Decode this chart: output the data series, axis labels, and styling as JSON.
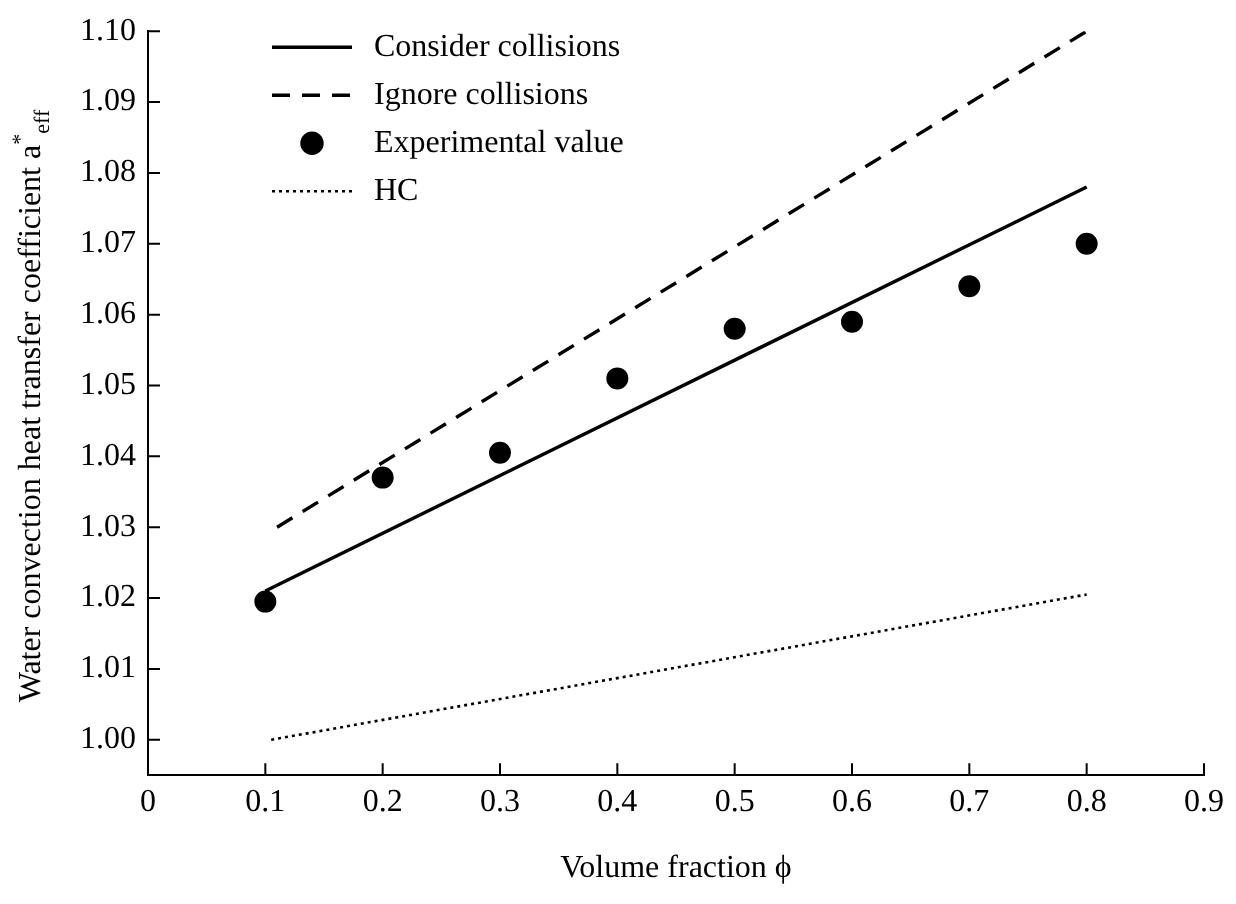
{
  "chart_data": {
    "type": "line",
    "xlabel": "Volume fraction ϕ",
    "ylabel": "Water convection heat transfer coefficient a$^{*}$$_{eff}$",
    "xlim": [
      0,
      0.9
    ],
    "xticks": [
      0,
      0.1,
      0.2,
      0.3,
      0.4,
      0.5,
      0.6,
      0.7,
      0.8,
      0.9
    ],
    "ylim": [
      0.995,
      1.1
    ],
    "yticks": [
      {
        "value": 1,
        "label": "1.00"
      },
      {
        "value": 1.01,
        "label": "1.01"
      },
      {
        "value": 1.02,
        "label": "1.02"
      },
      {
        "value": 1.03,
        "label": "1.03"
      },
      {
        "value": 1.04,
        "label": "1.04"
      },
      {
        "value": 1.05,
        "label": "1.05"
      },
      {
        "value": 1.06,
        "label": "1.06"
      },
      {
        "value": 1.07,
        "label": "1.07"
      },
      {
        "value": 1.08,
        "label": "1.08"
      },
      {
        "value": 1.09,
        "label": "1.09"
      },
      {
        "value": 1.1,
        "label": "1.10"
      }
    ],
    "legend": "top left",
    "series": [
      {
        "name": "Consider collisions",
        "line_style": "solid",
        "color": "#000000",
        "x": [
          0.1,
          0.8
        ],
        "values": [
          1.021,
          1.078
        ]
      },
      {
        "name": "Ignore collisions",
        "line_style": "dashed",
        "color": "#000000",
        "x": [
          0.11,
          0.8
        ],
        "values": [
          1.03,
          1.1
        ]
      },
      {
        "name": "Experimental value",
        "type": "scatter",
        "marker": "circle",
        "color": "#000000",
        "x": [
          0.1,
          0.2,
          0.3,
          0.4,
          0.5,
          0.6,
          0.7,
          0.8
        ],
        "values": [
          1.0195,
          1.037,
          1.0405,
          1.051,
          1.058,
          1.059,
          1.064,
          1.07
        ]
      },
      {
        "name": "HC",
        "line_style": "dotted",
        "color": "#000000",
        "x": [
          0.105,
          0.8
        ],
        "values": [
          1.0,
          1.0205
        ]
      }
    ]
  }
}
